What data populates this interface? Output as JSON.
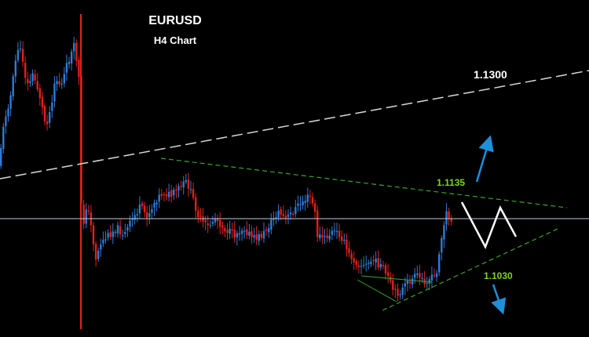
{
  "chart_data": {
    "type": "candlestick",
    "title": "EURUSD",
    "subtitle": "H4 Chart",
    "levels": [
      {
        "label": "1.1300",
        "color": "#ffffff"
      },
      {
        "label": "1.1135",
        "color": "#7dd321"
      },
      {
        "label": "1.1030",
        "color": "#7dd321"
      }
    ],
    "colors": {
      "bull": "#2f7bd4",
      "bear": "#e0201c",
      "arrow": "#1e90d8",
      "zigzag": "#ffffff",
      "trend_green": "#3aa52a",
      "resistance_white": "#d9d9d9",
      "horizontal_ref": "#c0c8e0"
    },
    "annotations": [
      "up-arrow",
      "down-arrow",
      "zigzag-path",
      "triangle-pattern"
    ]
  }
}
